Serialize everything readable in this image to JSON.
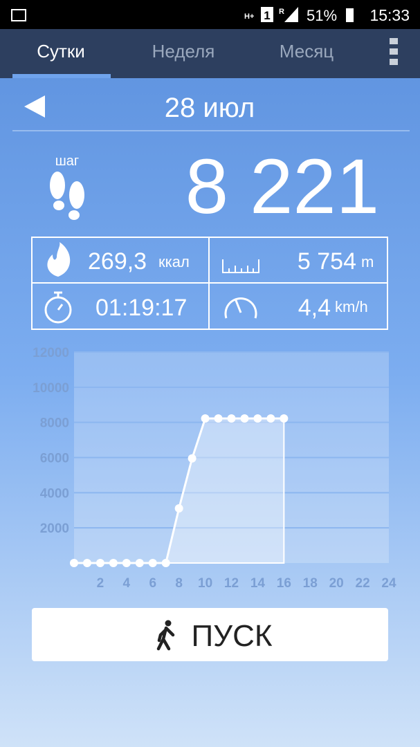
{
  "status_bar": {
    "network": "H+",
    "sim": "1",
    "roaming": "R",
    "battery": "51%",
    "time": "15:33"
  },
  "tabs": [
    "Сутки",
    "Неделя",
    "Месяц"
  ],
  "date": "28 июл",
  "steps": {
    "label": "шаг",
    "value": "8 221"
  },
  "stats": {
    "calories": {
      "value": "269,3",
      "unit": "ккал"
    },
    "distance": {
      "value": "5 754",
      "unit": "m"
    },
    "duration": {
      "value": "01:19:17"
    },
    "speed": {
      "value": "4,4",
      "unit": "km/h"
    }
  },
  "chart_data": {
    "type": "line",
    "x": [
      0,
      1,
      2,
      3,
      4,
      5,
      6,
      7,
      8,
      9,
      10,
      11,
      12,
      13,
      14,
      15,
      16
    ],
    "values": [
      0,
      0,
      0,
      0,
      0,
      0,
      0,
      0,
      3110,
      5950,
      8221,
      8221,
      8221,
      8221,
      8221,
      8221,
      8221
    ],
    "color": "#ffffff",
    "xlim": [
      0,
      24
    ],
    "xticks": [
      2,
      4,
      6,
      8,
      10,
      12,
      14,
      16,
      18,
      20,
      22,
      24
    ],
    "ylim": [
      0,
      12000
    ],
    "yticks": [
      2000,
      4000,
      6000,
      8000,
      10000,
      12000
    ],
    "grid": true
  },
  "button": "ПУСК"
}
